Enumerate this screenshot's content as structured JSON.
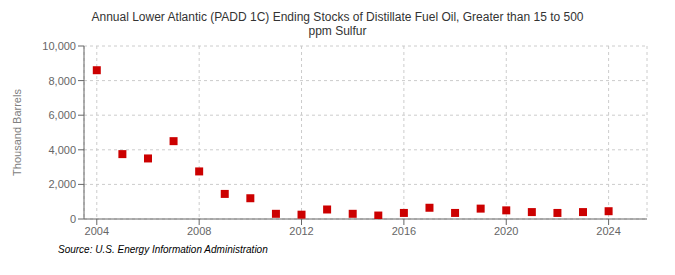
{
  "chart_data": {
    "type": "scatter",
    "title": "Annual Lower Atlantic (PADD 1C) Ending Stocks of Distillate Fuel Oil, Greater than 15 to 500\nppm Sulfur",
    "ylabel": "Thousand Barrels",
    "annotations": [
      "Source: U.S. Energy Information Administration"
    ],
    "x": [
      2004,
      2005,
      2006,
      2007,
      2008,
      2009,
      2010,
      2011,
      2012,
      2013,
      2014,
      2015,
      2016,
      2017,
      2018,
      2019,
      2020,
      2021,
      2022,
      2023,
      2024
    ],
    "values": [
      8600,
      3750,
      3500,
      4500,
      2750,
      1450,
      1200,
      300,
      250,
      550,
      300,
      200,
      350,
      650,
      350,
      600,
      500,
      400,
      350,
      400,
      450
    ],
    "color": "#cc0000",
    "marker": "square",
    "xlim": [
      2003.5,
      2025.5
    ],
    "xticks": [
      2004,
      2008,
      2012,
      2016,
      2020,
      2024
    ],
    "ylim": [
      0,
      10000
    ],
    "yticks": [
      {
        "value": 0,
        "label": "0"
      },
      {
        "value": 2000,
        "label": "2,000"
      },
      {
        "value": 4000,
        "label": "4,000"
      },
      {
        "value": 6000,
        "label": "6,000"
      },
      {
        "value": 8000,
        "label": "8,000"
      },
      {
        "value": 10000,
        "label": "10,000"
      }
    ],
    "grid": true
  }
}
